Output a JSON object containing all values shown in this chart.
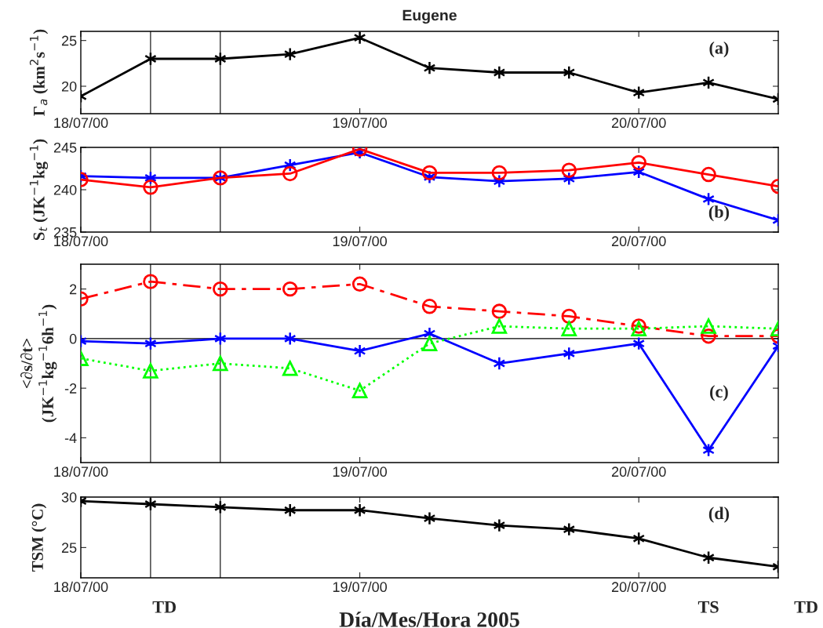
{
  "chart_data": [
    {
      "type": "line",
      "title": "Eugene",
      "ylabel": "Γ$_{a}$ (km$^{2}$s$^{−1}$)",
      "annotations": [
        "(a)"
      ],
      "x": [
        "2005-07-18T00:00",
        "2005-07-18T06:00",
        "2005-07-18T12:00",
        "2005-07-18T18:00",
        "2005-07-19T00:00",
        "2005-07-19T06:00",
        "2005-07-19T12:00",
        "2005-07-19T18:00",
        "2005-07-20T00:00",
        "2005-07-20T06:00",
        "2005-07-20T12:00"
      ],
      "xlim": [
        "2005-07-18T00:00",
        "2005-07-20T12:00"
      ],
      "xticks": [
        {
          "value": "2005-07-18T00:00",
          "label": "18/07/00"
        },
        {
          "value": "2005-07-19T00:00",
          "label": "19/07/00"
        },
        {
          "value": "2005-07-20T00:00",
          "label": "20/07/00"
        }
      ],
      "ylim": [
        17,
        26
      ],
      "yticks": [
        20,
        25
      ],
      "ref_lines": [
        {
          "axis": "x",
          "value": "2005-07-18T06:00"
        },
        {
          "axis": "x",
          "value": "2005-07-18T12:00"
        }
      ],
      "series": [
        {
          "color": "#000000",
          "marker": "cross",
          "line_style": "solid",
          "values": [
            18.9,
            23.0,
            23.0,
            23.5,
            25.3,
            22.0,
            21.5,
            21.5,
            19.3,
            20.4,
            18.6
          ]
        }
      ]
    },
    {
      "type": "line",
      "ylabel": "S$_{t}$ (JK$^{−1}$kg$^{−1}$)",
      "annotations": [
        "(b)"
      ],
      "x": [
        "2005-07-18T00:00",
        "2005-07-18T06:00",
        "2005-07-18T12:00",
        "2005-07-18T18:00",
        "2005-07-19T00:00",
        "2005-07-19T06:00",
        "2005-07-19T12:00",
        "2005-07-19T18:00",
        "2005-07-20T00:00",
        "2005-07-20T06:00",
        "2005-07-20T12:00"
      ],
      "xlim": [
        "2005-07-18T00:00",
        "2005-07-20T12:00"
      ],
      "xticks": [
        {
          "value": "2005-07-18T00:00",
          "label": "18/07/00"
        },
        {
          "value": "2005-07-19T00:00",
          "label": "19/07/00"
        },
        {
          "value": "2005-07-20T00:00",
          "label": "20/07/00"
        }
      ],
      "ylim": [
        235,
        245
      ],
      "yticks": [
        235,
        240,
        245
      ],
      "ref_lines": [
        {
          "axis": "x",
          "value": "2005-07-18T06:00"
        },
        {
          "axis": "x",
          "value": "2005-07-18T12:00"
        }
      ],
      "series": [
        {
          "color": "#0000ff",
          "marker": "cross",
          "line_style": "solid",
          "values": [
            241.6,
            241.4,
            241.4,
            242.9,
            244.4,
            241.5,
            241.0,
            241.3,
            242.1,
            238.9,
            236.4
          ]
        },
        {
          "color": "#ff0000",
          "marker": "circle",
          "line_style": "solid",
          "values": [
            241.2,
            240.3,
            241.4,
            241.9,
            244.8,
            242.0,
            242.0,
            242.3,
            243.2,
            241.8,
            240.4
          ]
        }
      ]
    },
    {
      "type": "line",
      "ylabel": "<∂s/∂t>\n(JK$^{−1}$kg$^{−1}$6h$^{−1}$)",
      "annotations": [
        "(c)"
      ],
      "x": [
        "2005-07-18T00:00",
        "2005-07-18T06:00",
        "2005-07-18T12:00",
        "2005-07-18T18:00",
        "2005-07-19T00:00",
        "2005-07-19T06:00",
        "2005-07-19T12:00",
        "2005-07-19T18:00",
        "2005-07-20T00:00",
        "2005-07-20T06:00",
        "2005-07-20T12:00"
      ],
      "xlim": [
        "2005-07-18T00:00",
        "2005-07-20T12:00"
      ],
      "xticks": [
        {
          "value": "2005-07-18T00:00",
          "label": "18/07/00"
        },
        {
          "value": "2005-07-19T00:00",
          "label": "19/07/00"
        },
        {
          "value": "2005-07-20T00:00",
          "label": "20/07/00"
        }
      ],
      "ylim": [
        -5,
        3
      ],
      "yticks": [
        -4,
        -2,
        0,
        2
      ],
      "ref_lines": [
        {
          "axis": "x",
          "value": "2005-07-18T06:00"
        },
        {
          "axis": "x",
          "value": "2005-07-18T12:00"
        },
        {
          "axis": "y",
          "value": 0
        }
      ],
      "series": [
        {
          "color": "#ff0000",
          "marker": "circle",
          "line_style": "dashed",
          "values": [
            1.6,
            2.3,
            2.0,
            2.0,
            2.2,
            1.3,
            1.1,
            0.9,
            0.5,
            0.1,
            0.1
          ]
        },
        {
          "color": "#0000ff",
          "marker": "cross",
          "line_style": "solid",
          "values": [
            -0.1,
            -0.2,
            0.0,
            0.0,
            -0.5,
            0.2,
            -1.0,
            -0.6,
            -0.2,
            -4.5,
            -0.3
          ]
        },
        {
          "color": "#00ff00",
          "marker": "triangle",
          "line_style": "dotted",
          "values": [
            -0.8,
            -1.3,
            -1.0,
            -1.2,
            -2.1,
            -0.2,
            0.5,
            0.4,
            0.4,
            0.5,
            0.4
          ]
        }
      ]
    },
    {
      "type": "line",
      "ylabel": "TSM (°C)",
      "xlabel": "Día/Mes/Hora 2005",
      "annotations": [
        "(d)",
        "TD",
        "TS",
        "TD"
      ],
      "x": [
        "2005-07-18T00:00",
        "2005-07-18T06:00",
        "2005-07-18T12:00",
        "2005-07-18T18:00",
        "2005-07-19T00:00",
        "2005-07-19T06:00",
        "2005-07-19T12:00",
        "2005-07-19T18:00",
        "2005-07-20T00:00",
        "2005-07-20T06:00",
        "2005-07-20T12:00"
      ],
      "xlim": [
        "2005-07-18T00:00",
        "2005-07-20T12:00"
      ],
      "xticks": [
        {
          "value": "2005-07-18T00:00",
          "label": "18/07/00"
        },
        {
          "value": "2005-07-19T00:00",
          "label": "19/07/00"
        },
        {
          "value": "2005-07-20T00:00",
          "label": "20/07/00"
        }
      ],
      "ylim": [
        22,
        30
      ],
      "yticks": [
        25,
        30
      ],
      "ref_lines": [
        {
          "axis": "x",
          "value": "2005-07-18T06:00"
        },
        {
          "axis": "x",
          "value": "2005-07-18T12:00"
        }
      ],
      "series": [
        {
          "color": "#000000",
          "marker": "cross",
          "line_style": "solid",
          "values": [
            29.6,
            29.3,
            29.0,
            28.7,
            28.7,
            27.9,
            27.2,
            26.8,
            25.9,
            24.0,
            23.1
          ]
        }
      ]
    }
  ]
}
